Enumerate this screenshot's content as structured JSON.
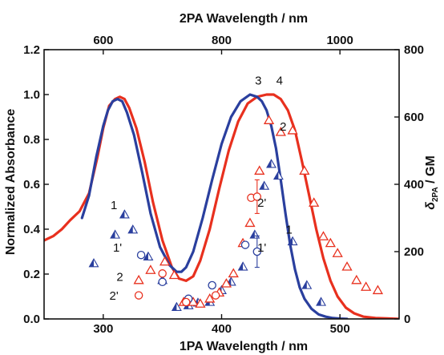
{
  "chart_data": {
    "type": "line",
    "xlabel": "1PA Wavelength / nm",
    "x2label": "2PA Wavelength / nm",
    "ylabel": "Normalized Absorbance",
    "y2label_main": "δ",
    "y2label_sub": "2PA",
    "y2label_tail": " / GM",
    "xlim": [
      250,
      550
    ],
    "x2lim": [
      500,
      1100
    ],
    "ylim": [
      0.0,
      1.2
    ],
    "y2lim": [
      0,
      800
    ],
    "x_ticks": [
      300,
      400,
      500
    ],
    "x2_ticks": [
      600,
      800,
      1000
    ],
    "y_ticks": [
      0.0,
      0.2,
      0.4,
      0.6,
      0.8,
      1.0,
      1.2
    ],
    "y_tick_labels": [
      "0.0",
      "0.2",
      "0.4",
      "0.6",
      "0.8",
      "1.0",
      "1.2"
    ],
    "y2_ticks": [
      0,
      200,
      400,
      600,
      800
    ],
    "colors": {
      "red": "#e8301e",
      "blue": "#2a3f9e",
      "frame": "#111111"
    },
    "series": [
      {
        "kind": "line",
        "color": "#e8301e",
        "x": [
          250,
          258,
          265,
          272,
          280,
          288,
          295,
          300,
          305,
          310,
          314,
          318,
          322,
          328,
          335,
          342,
          350,
          358,
          364,
          370,
          376,
          382,
          390,
          398,
          406,
          414,
          422,
          430,
          438,
          444,
          450,
          456,
          462,
          468,
          474,
          480,
          486,
          492,
          498,
          505,
          512,
          520,
          530,
          540,
          550
        ],
        "y": [
          0.35,
          0.37,
          0.4,
          0.44,
          0.48,
          0.56,
          0.72,
          0.85,
          0.95,
          0.98,
          0.99,
          0.98,
          0.94,
          0.85,
          0.7,
          0.52,
          0.35,
          0.23,
          0.18,
          0.17,
          0.19,
          0.26,
          0.4,
          0.58,
          0.75,
          0.88,
          0.96,
          0.99,
          1.0,
          1.0,
          0.98,
          0.93,
          0.84,
          0.7,
          0.55,
          0.4,
          0.27,
          0.17,
          0.1,
          0.05,
          0.025,
          0.01,
          0.004,
          0.002,
          0.0
        ]
      },
      {
        "kind": "line",
        "color": "#2a3f9e",
        "x": [
          282,
          288,
          294,
          300,
          304,
          308,
          312,
          316,
          320,
          326,
          333,
          340,
          348,
          356,
          362,
          366,
          370,
          376,
          384,
          392,
          400,
          408,
          416,
          424,
          430,
          434,
          438,
          442,
          446,
          450,
          454,
          458,
          462,
          466,
          470,
          476,
          482,
          488,
          494,
          500,
          506
        ],
        "y": [
          0.45,
          0.55,
          0.72,
          0.86,
          0.93,
          0.97,
          0.98,
          0.97,
          0.92,
          0.82,
          0.65,
          0.47,
          0.32,
          0.24,
          0.21,
          0.21,
          0.23,
          0.3,
          0.45,
          0.62,
          0.78,
          0.9,
          0.97,
          1.0,
          0.99,
          0.97,
          0.93,
          0.86,
          0.76,
          0.62,
          0.47,
          0.33,
          0.22,
          0.14,
          0.09,
          0.045,
          0.02,
          0.01,
          0.004,
          0.0015,
          0.0
        ]
      },
      {
        "kind": "scatter",
        "marker": "triangle-half",
        "color": "#2a3f9e",
        "axis": "right",
        "x": [
          292,
          310,
          318,
          325,
          338,
          350,
          362,
          372,
          380,
          390,
          400,
          408,
          418,
          428,
          436,
          442,
          448,
          460,
          472,
          484
        ],
        "y": [
          165,
          250,
          310,
          265,
          185,
          115,
          35,
          40,
          48,
          50,
          85,
          110,
          155,
          250,
          395,
          460,
          425,
          230,
          100,
          50
        ]
      },
      {
        "kind": "scatter",
        "marker": "triangle-open",
        "color": "#e8301e",
        "axis": "right",
        "x": [
          330,
          340,
          352,
          360,
          368,
          376,
          382,
          390,
          398,
          404,
          410,
          418,
          424,
          432,
          440,
          450,
          460,
          470,
          478,
          486,
          492,
          498,
          506,
          514,
          522,
          532
        ],
        "y": [
          115,
          145,
          170,
          130,
          50,
          50,
          45,
          60,
          78,
          105,
          135,
          225,
          285,
          440,
          590,
          555,
          560,
          440,
          345,
          245,
          225,
          195,
          155,
          115,
          95,
          85
        ]
      },
      {
        "kind": "scatter",
        "marker": "circle-open",
        "color": "#2a3f9e",
        "axis": "right",
        "x": [
          332,
          350,
          372,
          392,
          420
        ],
        "y": [
          190,
          110,
          60,
          100,
          220
        ]
      },
      {
        "kind": "scatter",
        "marker": "circle-open",
        "color": "#e8301e",
        "axis": "right",
        "x": [
          330,
          350,
          370,
          395,
          425
        ],
        "y": [
          70,
          135,
          50,
          70,
          360
        ]
      }
    ],
    "annotations": [
      {
        "text": "3",
        "x": 431,
        "y": 1.045
      },
      {
        "text": "4",
        "x": 449,
        "y": 1.045
      },
      {
        "text": "2",
        "x": 452,
        "y": 0.84
      },
      {
        "text": "1",
        "x": 457,
        "y": 0.38
      },
      {
        "text": "1",
        "x": 309,
        "y": 0.49
      },
      {
        "text": "1'",
        "x": 312,
        "y": 0.3
      },
      {
        "text": "2",
        "x": 314,
        "y": 0.17
      },
      {
        "text": "2'",
        "x": 309,
        "y": 0.085
      },
      {
        "text": "2'",
        "x": 434,
        "y": 0.5
      },
      {
        "text": "1'",
        "x": 434,
        "y": 0.3
      }
    ]
  }
}
